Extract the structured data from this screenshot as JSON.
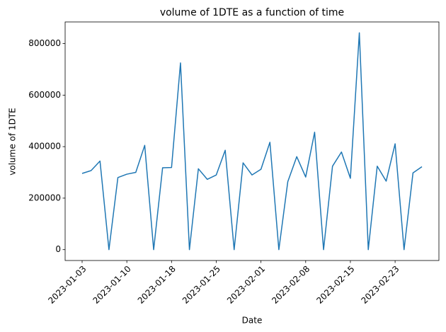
{
  "chart_data": {
    "type": "line",
    "title": "volume of 1DTE as a function of time",
    "x_label": "Date",
    "y_label": "volume of 1DTE",
    "categories": [
      "2023-01-03",
      null,
      null,
      null,
      null,
      "2023-01-10",
      null,
      null,
      null,
      null,
      "2023-01-18",
      null,
      null,
      null,
      null,
      "2023-01-25",
      null,
      null,
      null,
      null,
      "2023-02-01",
      null,
      null,
      null,
      null,
      "2023-02-08",
      null,
      null,
      null,
      null,
      "2023-02-15",
      null,
      null,
      null,
      null,
      "2023-02-23",
      null,
      null,
      null
    ],
    "series": [
      {
        "name": "volume of 1DTE",
        "color": "#1f77b4",
        "values": [
          296000,
          307000,
          344000,
          0,
          280000,
          293000,
          300000,
          405000,
          0,
          318000,
          319000,
          725000,
          0,
          314000,
          273000,
          290000,
          386000,
          0,
          337000,
          290000,
          312000,
          417000,
          0,
          264000,
          361000,
          282000,
          456000,
          0,
          324000,
          379000,
          277000,
          842000,
          0,
          324000,
          266000,
          411000,
          0,
          298000,
          322000
        ]
      }
    ],
    "ylim": [
      -42100,
      884100
    ],
    "yticks": [
      0,
      200000,
      400000,
      600000,
      800000
    ],
    "grid": false
  }
}
